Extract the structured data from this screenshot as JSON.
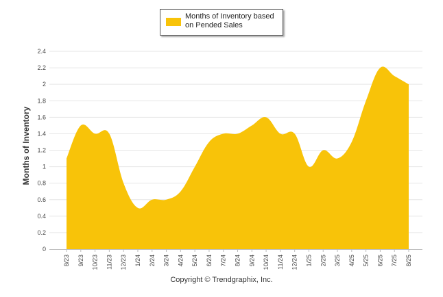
{
  "legend": {
    "label_line1": "Months of Inventory based",
    "label_line2": "on Pended Sales"
  },
  "copyright": "Copyright © Trendgraphix, Inc.",
  "colors": {
    "area": "#F8C309",
    "grid": "#e6e6e6",
    "axis": "#bbbbbb"
  },
  "chart_data": {
    "type": "area",
    "title": "",
    "xlabel": "",
    "ylabel": "Months of Inventory",
    "ylim": [
      0,
      2.4
    ],
    "yticks": [
      "0",
      "0.2",
      "0.4",
      "0.6",
      "0.8",
      "1",
      "1.2",
      "1.4",
      "1.6",
      "1.8",
      "2",
      "2.2",
      "2.4"
    ],
    "grid": true,
    "legend_position": "top-center",
    "categories": [
      "8/23",
      "9/23",
      "10/23",
      "11/23",
      "12/23",
      "1/24",
      "2/24",
      "3/24",
      "4/24",
      "5/24",
      "6/24",
      "7/24",
      "8/24",
      "9/24",
      "10/24",
      "11/24",
      "12/24",
      "1/25",
      "2/25",
      "3/25",
      "4/25",
      "5/25",
      "6/25",
      "7/25",
      "8/25"
    ],
    "series": [
      {
        "name": "Months of Inventory based on Pended Sales",
        "values": [
          1.1,
          1.5,
          1.4,
          1.4,
          0.8,
          0.5,
          0.6,
          0.6,
          0.7,
          1.0,
          1.3,
          1.4,
          1.4,
          1.5,
          1.6,
          1.4,
          1.4,
          1.0,
          1.2,
          1.1,
          1.3,
          1.8,
          2.2,
          2.1,
          2.0
        ]
      }
    ]
  }
}
